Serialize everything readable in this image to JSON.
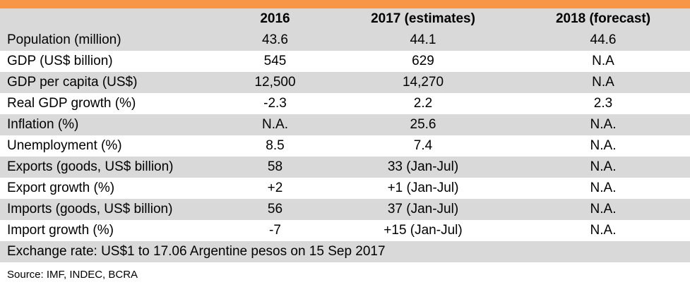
{
  "columns": [
    "",
    "2016",
    "2017 (estimates)",
    "2018 (forecast)"
  ],
  "rows": [
    {
      "label": "Population (million)",
      "y2016": "43.6",
      "y2017": "44.1",
      "y2018": "44.6"
    },
    {
      "label": "GDP (US$ billion)",
      "y2016": "545",
      "y2017": "629",
      "y2018": "N.A"
    },
    {
      "label": "GDP per capita (US$)",
      "y2016": "12,500",
      "y2017": "14,270",
      "y2018": "N.A"
    },
    {
      "label": "Real GDP growth (%)",
      "y2016": "-2.3",
      "y2017": "2.2",
      "y2018": "2.3"
    },
    {
      "label": "Inflation (%)",
      "y2016": "N.A.",
      "y2017": "25.6",
      "y2018": "N.A."
    },
    {
      "label": "Unemployment (%)",
      "y2016": "8.5",
      "y2017": "7.4",
      "y2018": "N.A."
    },
    {
      "label": "Exports (goods, US$ billion)",
      "y2016": "58",
      "y2017": "33 (Jan-Jul)",
      "y2018": "N.A."
    },
    {
      "label": "Export growth (%)",
      "y2016": "+2",
      "y2017": "+1 (Jan-Jul)",
      "y2018": "N.A."
    },
    {
      "label": "Imports (goods, US$ billion)",
      "y2016": "56",
      "y2017": "37 (Jan-Jul)",
      "y2018": "N.A."
    },
    {
      "label": "Import growth (%)",
      "y2016": "-7",
      "y2017": "+15 (Jan-Jul)",
      "y2018": "N.A."
    }
  ],
  "exchange_note": "Exchange rate: US$1 to 17.06 Argentine pesos on 15 Sep 2017",
  "source": "Source: IMF, INDEC, BCRA",
  "colors": {
    "accent_bar": "#f79646",
    "shaded_row": "#d9d9d9"
  }
}
